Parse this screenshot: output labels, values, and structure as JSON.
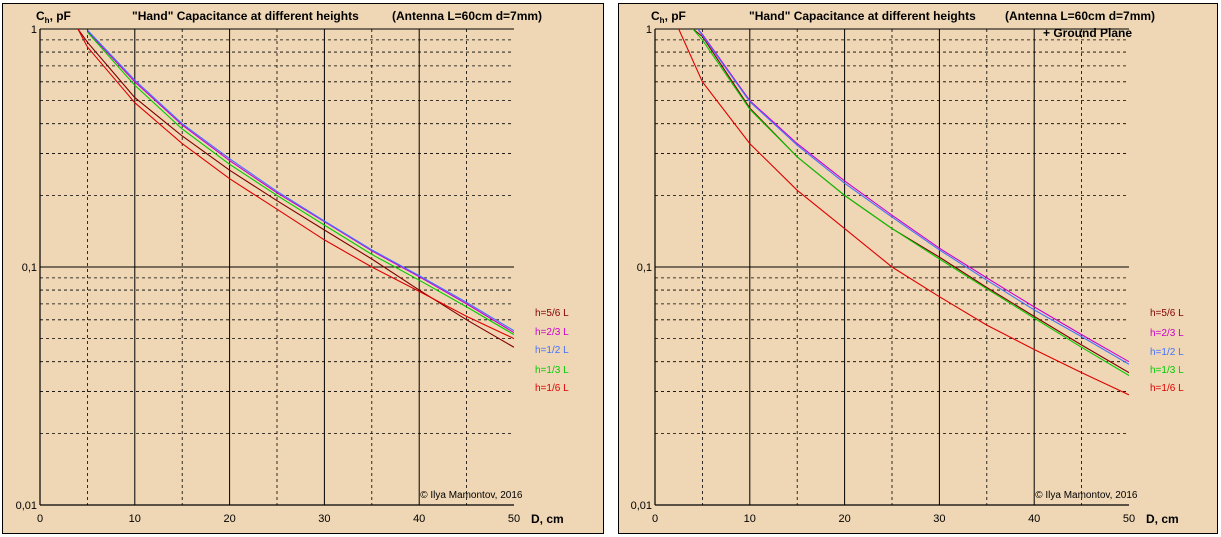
{
  "chart_data": [
    {
      "type": "line",
      "title": "\"Hand\" Capacitance at different heights",
      "subtitle": "(Antenna   L=60cm  d=7mm)",
      "subtitle2": "",
      "ylabel_main": "C",
      "ylabel_sub": "h",
      "ylabel_unit": ", pF",
      "xlabel": "D, cm",
      "xlim": [
        0,
        50
      ],
      "ylim": [
        0.01,
        1
      ],
      "yscale": "log",
      "grid": true,
      "x_ticks": [
        "0",
        "10",
        "20",
        "30",
        "40",
        "50"
      ],
      "y_ticks": [
        "0,01",
        "0,1",
        "1"
      ],
      "copyright": "© Ilya Mamontov, 2016",
      "legend_position": "right",
      "series": [
        {
          "name": "h=5/6 L",
          "color": "#800000",
          "x": [
            4,
            5,
            10,
            15,
            20,
            25,
            30,
            35,
            40,
            45,
            50
          ],
          "values": [
            1.0,
            0.88,
            0.515,
            0.355,
            0.255,
            0.19,
            0.143,
            0.108,
            0.08,
            0.06,
            0.046
          ]
        },
        {
          "name": "h=2/3 L",
          "color": "#cc00cc",
          "x": [
            5,
            10,
            15,
            20,
            25,
            30,
            35,
            40,
            45,
            50
          ],
          "values": [
            0.98,
            0.6,
            0.395,
            0.28,
            0.205,
            0.155,
            0.117,
            0.091,
            0.07,
            0.053
          ]
        },
        {
          "name": "h=1/2 L",
          "color": "#4472ff",
          "x": [
            5,
            10,
            15,
            20,
            25,
            30,
            35,
            40,
            45,
            50
          ],
          "values": [
            0.99,
            0.61,
            0.4,
            0.285,
            0.208,
            0.156,
            0.118,
            0.092,
            0.071,
            0.054
          ]
        },
        {
          "name": "h=1/3 L",
          "color": "#00cc00",
          "x": [
            5,
            10,
            15,
            20,
            25,
            30,
            35,
            40,
            45,
            50
          ],
          "values": [
            0.97,
            0.58,
            0.38,
            0.27,
            0.2,
            0.15,
            0.113,
            0.088,
            0.068,
            0.052
          ]
        },
        {
          "name": "h=1/6 L",
          "color": "#dd0000",
          "x": [
            4,
            5,
            10,
            15,
            20,
            25,
            30,
            35,
            40,
            45,
            50
          ],
          "values": [
            1.0,
            0.84,
            0.49,
            0.33,
            0.235,
            0.175,
            0.13,
            0.1,
            0.079,
            0.062,
            0.05
          ]
        }
      ]
    },
    {
      "type": "line",
      "title": "\"Hand\" Capacitance at different heights",
      "subtitle": "(Antenna   L=60cm  d=7mm)",
      "subtitle2": "+ Ground Plane",
      "ylabel_main": "C",
      "ylabel_sub": "h",
      "ylabel_unit": ", pF",
      "xlabel": "D, cm",
      "xlim": [
        0,
        50
      ],
      "ylim": [
        0.01,
        1
      ],
      "yscale": "log",
      "grid": true,
      "x_ticks": [
        "0",
        "10",
        "20",
        "30",
        "40",
        "50"
      ],
      "y_ticks": [
        "0,01",
        "0,1",
        "1"
      ],
      "copyright": "© Ilya Mamontov, 2016",
      "legend_position": "right",
      "series": [
        {
          "name": "h=5/6 L",
          "color": "#800000",
          "x": [
            4,
            5,
            10,
            15,
            20,
            25,
            30,
            35,
            40,
            45,
            50
          ],
          "values": [
            1.0,
            0.93,
            0.465,
            0.29,
            0.2,
            0.145,
            0.11,
            0.082,
            0.062,
            0.047,
            0.036
          ]
        },
        {
          "name": "h=2/3 L",
          "color": "#cc00cc",
          "x": [
            4.5,
            5,
            10,
            15,
            20,
            25,
            30,
            35,
            40,
            45,
            50
          ],
          "values": [
            1.0,
            0.95,
            0.5,
            0.33,
            0.23,
            0.165,
            0.12,
            0.09,
            0.068,
            0.052,
            0.04
          ]
        },
        {
          "name": "h=1/2 L",
          "color": "#4472ff",
          "x": [
            4.5,
            5,
            10,
            15,
            20,
            25,
            30,
            35,
            40,
            45,
            50
          ],
          "values": [
            1.0,
            0.94,
            0.495,
            0.325,
            0.225,
            0.162,
            0.118,
            0.088,
            0.066,
            0.051,
            0.039
          ]
        },
        {
          "name": "h=1/3 L",
          "color": "#00cc00",
          "x": [
            4,
            5,
            10,
            15,
            20,
            25,
            30,
            35,
            40,
            45,
            50
          ],
          "values": [
            1.0,
            0.9,
            0.46,
            0.29,
            0.2,
            0.145,
            0.108,
            0.081,
            0.061,
            0.046,
            0.035
          ]
        },
        {
          "name": "h=1/6 L",
          "color": "#dd0000",
          "x": [
            2.5,
            5,
            10,
            15,
            20,
            25,
            30,
            35,
            40,
            45,
            50
          ],
          "values": [
            1.0,
            0.6,
            0.33,
            0.21,
            0.145,
            0.1,
            0.075,
            0.057,
            0.045,
            0.036,
            0.029
          ]
        }
      ]
    }
  ]
}
